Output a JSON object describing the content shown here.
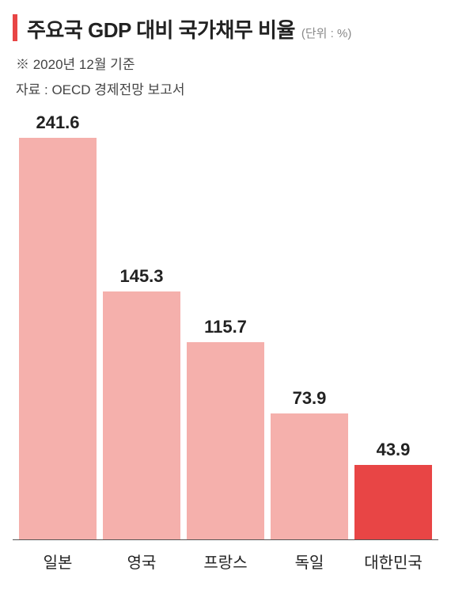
{
  "title": "주요국 GDP 대비 국가채무 비율",
  "unit": "(단위 : %)",
  "subtitle": "※ 2020년 12월 기준",
  "source": "자료 : OECD 경제전망 보고서",
  "chart": {
    "type": "bar",
    "categories": [
      "일본",
      "영국",
      "프랑스",
      "독일",
      "대한민국"
    ],
    "values": [
      241.6,
      145.3,
      115.7,
      73.9,
      43.9
    ],
    "bar_colors": [
      "#f5b0ac",
      "#f5b0ac",
      "#f5b0ac",
      "#f5b0ac",
      "#e84545"
    ],
    "value_labels": [
      "241.6",
      "145.3",
      "115.7",
      "73.9",
      "43.9"
    ],
    "ylim": [
      0,
      250
    ],
    "background_color": "#ffffff",
    "baseline_color": "#555555",
    "value_fontsize": 22,
    "label_fontsize": 20,
    "title_fontsize": 26,
    "unit_color": "#888888",
    "text_color": "#222222",
    "accent_color": "#e84545",
    "bar_width": 0.92
  }
}
